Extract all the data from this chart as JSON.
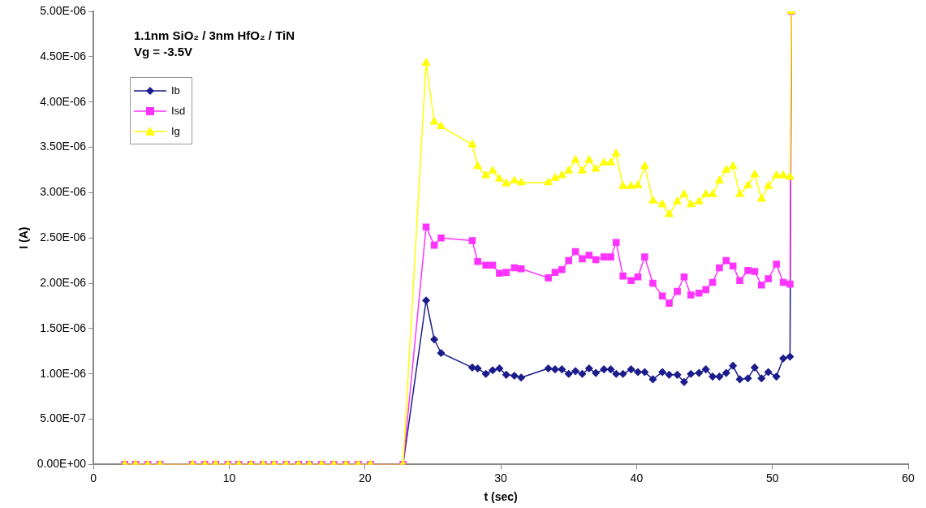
{
  "chart_data": {
    "type": "line",
    "title": "1.1nm SiO₂ / 3nm HfO₂ / TiN",
    "subtitle": "Vg = -3.5V",
    "xlabel": "t (sec)",
    "ylabel": "I (A)",
    "x": [
      2.3,
      3.1,
      4.0,
      4.9,
      7.3,
      8.2,
      9.0,
      9.9,
      10.7,
      11.6,
      12.5,
      13.3,
      14.2,
      15.1,
      15.9,
      16.8,
      17.7,
      18.6,
      19.5,
      20.4,
      22.8,
      24.5,
      25.1,
      25.6,
      27.9,
      28.3,
      28.9,
      29.4,
      29.9,
      30.4,
      31.0,
      31.5,
      33.5,
      34.0,
      34.5,
      35.0,
      35.5,
      36.0,
      36.5,
      37.0,
      37.6,
      38.1,
      38.5,
      39.0,
      39.6,
      40.1,
      40.6,
      41.2,
      41.9,
      42.4,
      43.0,
      43.5,
      44.0,
      44.6,
      45.1,
      45.6,
      46.1,
      46.6,
      47.1,
      47.6,
      48.2,
      48.7,
      49.2,
      49.7,
      50.3,
      50.8,
      51.3,
      51.4
    ],
    "series": [
      {
        "name": "Ib",
        "color": "#1c1c8c",
        "marker": "diamond",
        "values": [
          null,
          null,
          null,
          null,
          null,
          null,
          null,
          null,
          null,
          null,
          null,
          null,
          null,
          null,
          null,
          null,
          null,
          null,
          null,
          0,
          0,
          1.81e-06,
          1.38e-06,
          1.23e-06,
          1.07e-06,
          1.06e-06,
          1e-06,
          1.04e-06,
          1.06e-06,
          9.9e-07,
          9.8e-07,
          9.6e-07,
          1.06e-06,
          1.05e-06,
          1.05e-06,
          1e-06,
          1.03e-06,
          1e-06,
          1.06e-06,
          1.01e-06,
          1.05e-06,
          1.05e-06,
          1e-06,
          1e-06,
          1.05e-06,
          1.02e-06,
          1.02e-06,
          9.4e-07,
          1.02e-06,
          9.9e-07,
          9.9e-07,
          9.1e-07,
          1e-06,
          1.01e-06,
          1.05e-06,
          9.7e-07,
          9.7e-07,
          1.01e-06,
          1.09e-06,
          9.4e-07,
          9.5e-07,
          1.07e-06,
          9.5e-07,
          1.02e-06,
          9.7e-07,
          1.17e-06,
          1.19e-06,
          5e-06
        ]
      },
      {
        "name": "Isd",
        "color": "#ff33ff",
        "marker": "square",
        "values": [
          0,
          0,
          0,
          0,
          0,
          0,
          0,
          0,
          0,
          0,
          0,
          0,
          0,
          0,
          0,
          0,
          0,
          0,
          0,
          0,
          0,
          2.62e-06,
          2.42e-06,
          2.5e-06,
          2.47e-06,
          2.24e-06,
          2.2e-06,
          2.2e-06,
          2.11e-06,
          2.12e-06,
          2.17e-06,
          2.16e-06,
          2.06e-06,
          2.12e-06,
          2.15e-06,
          2.25e-06,
          2.35e-06,
          2.27e-06,
          2.31e-06,
          2.26e-06,
          2.29e-06,
          2.29e-06,
          2.45e-06,
          2.08e-06,
          2.03e-06,
          2.07e-06,
          2.29e-06,
          2e-06,
          1.86e-06,
          1.78e-06,
          1.91e-06,
          2.07e-06,
          1.87e-06,
          1.89e-06,
          1.93e-06,
          2.01e-06,
          2.17e-06,
          2.25e-06,
          2.19e-06,
          2.03e-06,
          2.14e-06,
          2.13e-06,
          1.98e-06,
          2.05e-06,
          2.21e-06,
          2.01e-06,
          1.99e-06,
          5e-06
        ]
      },
      {
        "name": "Ig",
        "color": "#ffff00",
        "marker": "triangle",
        "values": [
          0,
          0,
          0,
          0,
          0,
          0,
          0,
          0,
          0,
          0,
          0,
          0,
          0,
          0,
          0,
          0,
          0,
          0,
          0,
          0,
          0,
          4.43e-06,
          3.78e-06,
          3.73e-06,
          3.53e-06,
          3.29e-06,
          3.19e-06,
          3.24e-06,
          3.15e-06,
          3.1e-06,
          3.13e-06,
          3.11e-06,
          3.11e-06,
          3.16e-06,
          3.19e-06,
          3.24e-06,
          3.36e-06,
          3.24e-06,
          3.36e-06,
          3.26e-06,
          3.33e-06,
          3.33e-06,
          3.43e-06,
          3.07e-06,
          3.07e-06,
          3.08e-06,
          3.29e-06,
          2.91e-06,
          2.87e-06,
          2.76e-06,
          2.9e-06,
          2.98e-06,
          2.87e-06,
          2.9e-06,
          2.98e-06,
          2.98e-06,
          3.13e-06,
          3.25e-06,
          3.29e-06,
          2.98e-06,
          3.08e-06,
          3.2e-06,
          2.93e-06,
          3.07e-06,
          3.19e-06,
          3.19e-06,
          3.17e-06,
          5e-06
        ]
      }
    ],
    "xlim": [
      0,
      60
    ],
    "xticks": [
      0,
      10,
      20,
      30,
      40,
      50,
      60
    ],
    "ylim": [
      0,
      5e-06
    ],
    "yticks": [
      {
        "value": 0,
        "label": "0.00E+00"
      },
      {
        "value": 5e-07,
        "label": "5.00E-07"
      },
      {
        "value": 1e-06,
        "label": "1.00E-06"
      },
      {
        "value": 1.5e-06,
        "label": "1.50E-06"
      },
      {
        "value": 2e-06,
        "label": "2.00E-06"
      },
      {
        "value": 2.5e-06,
        "label": "2.50E-06"
      },
      {
        "value": 3e-06,
        "label": "3.00E-06"
      },
      {
        "value": 3.5e-06,
        "label": "3.50E-06"
      },
      {
        "value": 4e-06,
        "label": "4.00E-06"
      },
      {
        "value": 4.5e-06,
        "label": "4.50E-06"
      },
      {
        "value": 5e-06,
        "label": "5.00E-06"
      }
    ],
    "grid": false,
    "legend": "top left",
    "line_style": "solid"
  }
}
